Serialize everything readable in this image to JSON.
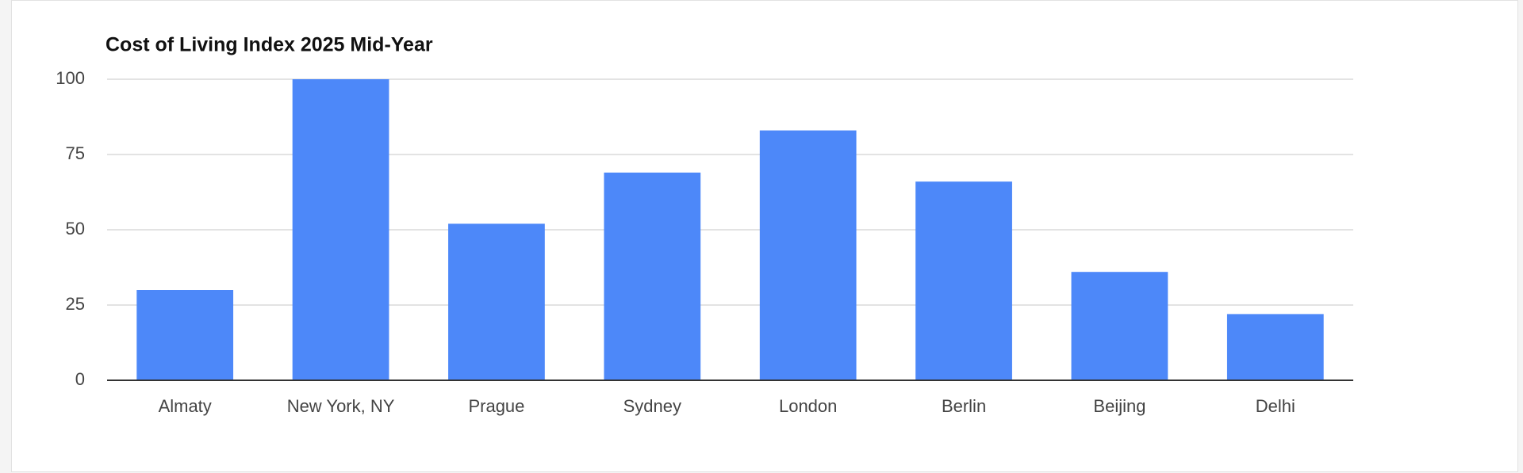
{
  "chart_data": {
    "type": "bar",
    "title": "Cost of Living Index 2025 Mid-Year",
    "categories": [
      "Almaty",
      "New York, NY",
      "Prague",
      "Sydney",
      "London",
      "Berlin",
      "Beijing",
      "Delhi"
    ],
    "values": [
      30,
      100,
      52,
      69,
      83,
      66,
      36,
      22
    ],
    "color": "#4d88f9",
    "ylim": [
      0,
      100
    ],
    "yticks": [
      0,
      25,
      50,
      75,
      100
    ],
    "grid": true
  }
}
